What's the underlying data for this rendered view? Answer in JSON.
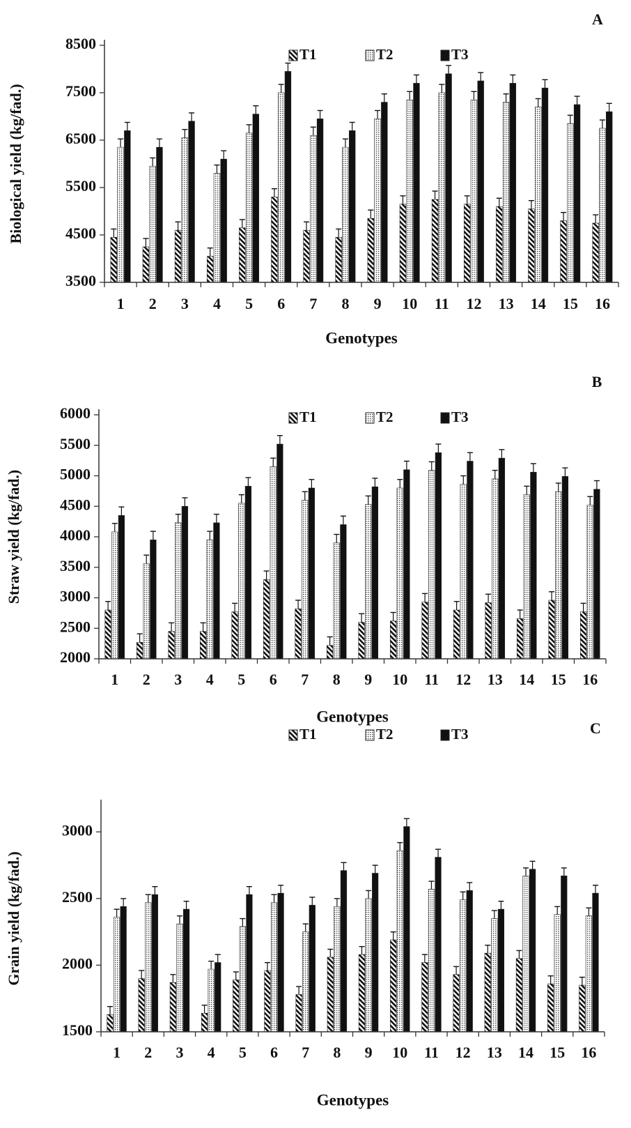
{
  "chart_data": [
    {
      "type": "bar",
      "panel_label": "A",
      "xlabel": "Genotypes",
      "ylabel": "Biological yield (kg/fad.)",
      "ylim": [
        3500,
        8500
      ],
      "yticks": [
        "3500",
        "4500",
        "5500",
        "6500",
        "7500",
        "8500"
      ],
      "categories": [
        "1",
        "2",
        "3",
        "4",
        "5",
        "6",
        "7",
        "8",
        "9",
        "10",
        "11",
        "12",
        "13",
        "14",
        "15",
        "16"
      ],
      "series": [
        {
          "name": "T1",
          "values": [
            4450,
            4250,
            4600,
            4050,
            4650,
            5300,
            4600,
            4450,
            4850,
            5150,
            5250,
            5150,
            5100,
            5050,
            4800,
            4750
          ]
        },
        {
          "name": "T2",
          "values": [
            6350,
            5950,
            6550,
            5800,
            6650,
            7500,
            6600,
            6350,
            6950,
            7350,
            7500,
            7350,
            7300,
            7200,
            6850,
            6750
          ]
        },
        {
          "name": "T3",
          "values": [
            6700,
            6350,
            6900,
            6100,
            7050,
            7950,
            6950,
            6700,
            7300,
            7700,
            7900,
            7750,
            7700,
            7600,
            7250,
            7100
          ]
        }
      ],
      "error_bars": true,
      "legend_position": "top-center"
    },
    {
      "type": "bar",
      "panel_label": "B",
      "xlabel": "Genotypes",
      "ylabel": "Straw yield (kg/fad.)",
      "ylim": [
        2000,
        6000
      ],
      "yticks": [
        "2000",
        "2500",
        "3000",
        "3500",
        "4000",
        "4500",
        "5000",
        "5500",
        "6000"
      ],
      "categories": [
        "1",
        "2",
        "3",
        "4",
        "5",
        "6",
        "7",
        "8",
        "9",
        "10",
        "11",
        "12",
        "13",
        "14",
        "15",
        "16"
      ],
      "series": [
        {
          "name": "T1",
          "values": [
            2800,
            2270,
            2450,
            2450,
            2770,
            3300,
            2820,
            2220,
            2600,
            2620,
            2930,
            2800,
            2920,
            2660,
            2960,
            2770
          ]
        },
        {
          "name": "T2",
          "values": [
            4080,
            3560,
            4230,
            3950,
            4550,
            5150,
            4600,
            3900,
            4530,
            4800,
            5090,
            4860,
            4950,
            4690,
            4740,
            4520
          ]
        },
        {
          "name": "T3",
          "values": [
            4350,
            3950,
            4500,
            4230,
            4830,
            5520,
            4800,
            4200,
            4820,
            5100,
            5380,
            5240,
            5290,
            5060,
            4990,
            4780
          ]
        }
      ],
      "error_bars": true,
      "legend_position": "top-center"
    },
    {
      "type": "bar",
      "panel_label": "C",
      "xlabel": "Genotypes",
      "ylabel": "Grain yield (kg/fad.)",
      "ylim": [
        1500,
        3200
      ],
      "yticks": [
        "1500",
        "2000",
        "2500",
        "3000"
      ],
      "categories": [
        "1",
        "2",
        "3",
        "4",
        "5",
        "6",
        "7",
        "8",
        "9",
        "10",
        "11",
        "12",
        "13",
        "14",
        "15",
        "16"
      ],
      "series": [
        {
          "name": "T1",
          "values": [
            1630,
            1900,
            1870,
            1640,
            1890,
            1960,
            1780,
            2060,
            2080,
            2190,
            2020,
            1930,
            2090,
            2050,
            1860,
            1850
          ]
        },
        {
          "name": "T2",
          "values": [
            2360,
            2470,
            2310,
            1970,
            2290,
            2470,
            2250,
            2440,
            2500,
            2860,
            2570,
            2490,
            2350,
            2670,
            2380,
            2370
          ]
        },
        {
          "name": "T3",
          "values": [
            2440,
            2530,
            2420,
            2020,
            2530,
            2540,
            2450,
            2710,
            2690,
            3040,
            2810,
            2560,
            2420,
            2720,
            2670,
            2540
          ]
        }
      ],
      "error_bars": true,
      "legend_position": "top-center"
    }
  ]
}
